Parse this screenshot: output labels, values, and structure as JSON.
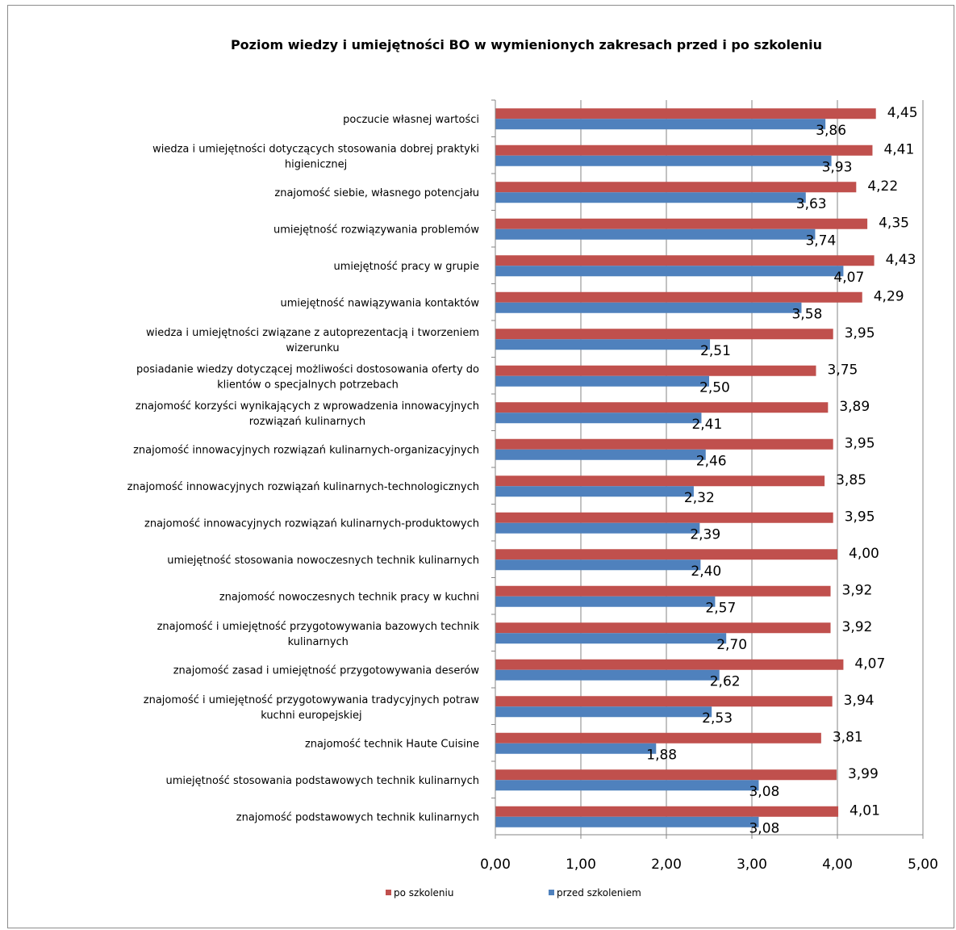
{
  "chart_data": {
    "type": "bar",
    "orientation": "horizontal",
    "title": "Poziom wiedzy i umiejętności BO w wymienionych zakresach przed i po szkoleniu",
    "xlim": [
      0,
      5
    ],
    "xticks": [
      "0,00",
      "1,00",
      "2,00",
      "3,00",
      "4,00",
      "5,00"
    ],
    "grid": true,
    "legend": "bottom",
    "categories": [
      [
        "poczucie własnej wartości"
      ],
      [
        "wiedza i umiejętności dotyczących stosowania dobrej praktyki",
        "higienicznej"
      ],
      [
        "znajomość siebie, własnego potencjału"
      ],
      [
        "umiejętność rozwiązywania problemów"
      ],
      [
        "umiejętność pracy w grupie"
      ],
      [
        "umiejętność nawiązywania kontaktów"
      ],
      [
        "wiedza i umiejętności związane z autoprezentacją i tworzeniem",
        "wizerunku"
      ],
      [
        "posiadanie wiedzy dotyczącej możliwości dostosowania oferty do",
        "klientów o specjalnych potrzebach"
      ],
      [
        "znajomość korzyści wynikających z wprowadzenia innowacyjnych",
        "rozwiązań kulinarnych"
      ],
      [
        "znajomość innowacyjnych rozwiązań kulinarnych-organizacyjnych"
      ],
      [
        "znajomość innowacyjnych rozwiązań kulinarnych-technologicznych"
      ],
      [
        "znajomość innowacyjnych rozwiązań kulinarnych-produktowych"
      ],
      [
        "umiejętność stosowania nowoczesnych technik kulinarnych"
      ],
      [
        "znajomość nowoczesnych technik pracy w kuchni"
      ],
      [
        "znajomość i umiejętność przygotowywania bazowych technik",
        "kulinarnych"
      ],
      [
        "znajomość zasad i umiejętność przygotowywania deserów"
      ],
      [
        "znajomość i umiejętność przygotowywania tradycyjnych potraw",
        "kuchni europejskiej"
      ],
      [
        "znajomość technik Haute Cuisine"
      ],
      [
        "umiejętność stosowania podstawowych technik kulinarnych"
      ],
      [
        "znajomość podstawowych technik kulinarnych"
      ]
    ],
    "series": [
      {
        "name": "po szkoleniu",
        "color": "#c0504d",
        "values": [
          4.45,
          4.41,
          4.22,
          4.35,
          4.43,
          4.29,
          3.95,
          3.75,
          3.89,
          3.95,
          3.85,
          3.95,
          4.0,
          3.92,
          3.92,
          4.07,
          3.94,
          3.81,
          3.99,
          4.01
        ],
        "labels": [
          "4,45",
          "4,41",
          "4,22",
          "4,35",
          "4,43",
          "4,29",
          "3,95",
          "3,75",
          "3,89",
          "3,95",
          "3,85",
          "3,95",
          "4,00",
          "3,92",
          "3,92",
          "4,07",
          "3,94",
          "3,81",
          "3,99",
          "4,01"
        ]
      },
      {
        "name": "przed szkoleniem",
        "color": "#4f81bd",
        "values": [
          3.86,
          3.93,
          3.63,
          3.74,
          4.07,
          3.58,
          2.51,
          2.5,
          2.41,
          2.46,
          2.32,
          2.39,
          2.4,
          2.57,
          2.7,
          2.62,
          2.53,
          1.88,
          3.08,
          3.08
        ],
        "labels": [
          "3,86",
          "3,93",
          "3,63",
          "3,74",
          "4,07",
          "3,58",
          "2,51",
          "2,50",
          "2,41",
          "2,46",
          "2,32",
          "2,39",
          "2,40",
          "2,57",
          "2,70",
          "2,62",
          "2,53",
          "1,88",
          "3,08",
          "3,08"
        ]
      }
    ]
  }
}
